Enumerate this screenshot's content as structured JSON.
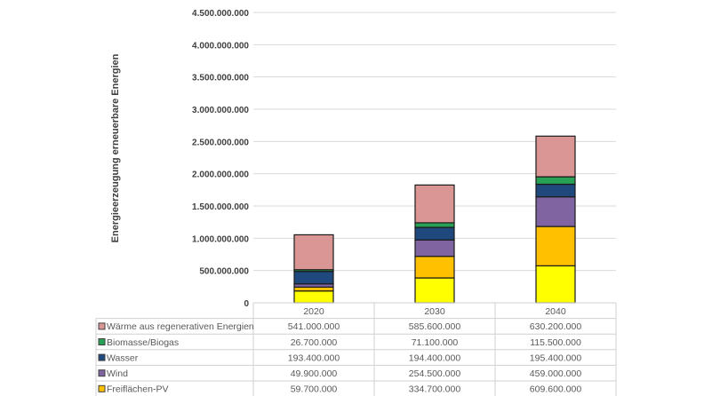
{
  "chart_data": {
    "type": "bar",
    "stacked": true,
    "title": "",
    "xlabel": "",
    "ylabel": "Energieerzeugung erneuerbare Energien",
    "ylim": [
      0,
      4500000000
    ],
    "yticks": [
      "0",
      "500.000.000",
      "1.000.000.000",
      "1.500.000.000",
      "2.000.000.000",
      "2.500.000.000",
      "3.000.000.000",
      "3.500.000.000",
      "4.000.000.000",
      "4.500.000.000"
    ],
    "grid": true,
    "legend": "data-table-below",
    "categories": [
      "2020",
      "2030",
      "2040"
    ],
    "series": [
      {
        "values": [
          183000000,
          385000000,
          573000000
        ],
        "color": "#ffff00"
      },
      {
        "name": "Freiflächen-PV",
        "values": [
          59700000,
          334700000,
          609600000
        ],
        "labels": [
          "59.700.000",
          "334.700.000",
          "609.600.000"
        ],
        "color": "#ffc000"
      },
      {
        "name": "Wind",
        "values": [
          49900000,
          254500000,
          459000000
        ],
        "labels": [
          "49.900.000",
          "254.500.000",
          "459.000.000"
        ],
        "color": "#8064a2"
      },
      {
        "name": "Wasser",
        "values": [
          193400000,
          194400000,
          195400000
        ],
        "labels": [
          "193.400.000",
          "194.400.000",
          "195.400.000"
        ],
        "color": "#1f497d"
      },
      {
        "name": "Biomasse/Biogas",
        "values": [
          26700000,
          71100000,
          115500000
        ],
        "labels": [
          "26.700.000",
          "71.100.000",
          "115.500.000"
        ],
        "color": "#28a055"
      },
      {
        "name": "Wärme aus regenerativen Energien",
        "values": [
          541000000,
          585600000,
          630200000
        ],
        "labels": [
          "541.000.000",
          "585.600.000",
          "630.200.000"
        ],
        "color": "#d99694"
      }
    ],
    "table_order": [
      5,
      4,
      3,
      2,
      1
    ]
  }
}
